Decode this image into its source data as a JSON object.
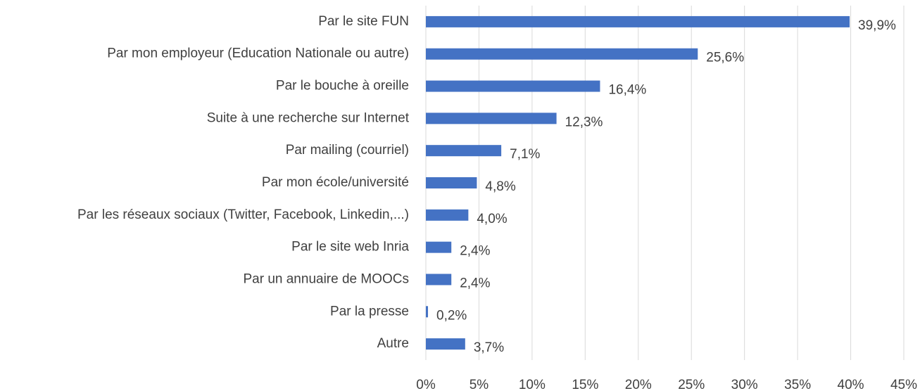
{
  "chart_data": {
    "type": "hbar",
    "categories": [
      "Par le site FUN",
      "Par mon employeur (Education Nationale ou autre)",
      "Par le bouche à oreille",
      "Suite à une recherche sur Internet",
      "Par mailing (courriel)",
      "Par mon école/université",
      "Par les réseaux sociaux (Twitter, Facebook, Linkedin,...)",
      "Par le site web Inria",
      "Par un annuaire de MOOCs",
      "Par la presse",
      "Autre"
    ],
    "values": [
      39.9,
      25.6,
      16.4,
      12.3,
      7.1,
      4.8,
      4.0,
      2.4,
      2.4,
      0.2,
      3.7
    ],
    "value_labels": [
      "39,9%",
      "25,6%",
      "16,4%",
      "12,3%",
      "7,1%",
      "4,8%",
      "4,0%",
      "2,4%",
      "2,4%",
      "0,2%",
      "3,7%"
    ],
    "color": "#4472c4",
    "xlim": [
      0,
      45
    ],
    "xticks": [
      {
        "value": 0,
        "label": "0%"
      },
      {
        "value": 5,
        "label": "5%"
      },
      {
        "value": 10,
        "label": "10%"
      },
      {
        "value": 15,
        "label": "15%"
      },
      {
        "value": 20,
        "label": "20%"
      },
      {
        "value": 25,
        "label": "25%"
      },
      {
        "value": 30,
        "label": "30%"
      },
      {
        "value": 35,
        "label": "35%"
      },
      {
        "value": 40,
        "label": "40%"
      },
      {
        "value": 45,
        "label": "45%"
      }
    ],
    "grid": true
  }
}
